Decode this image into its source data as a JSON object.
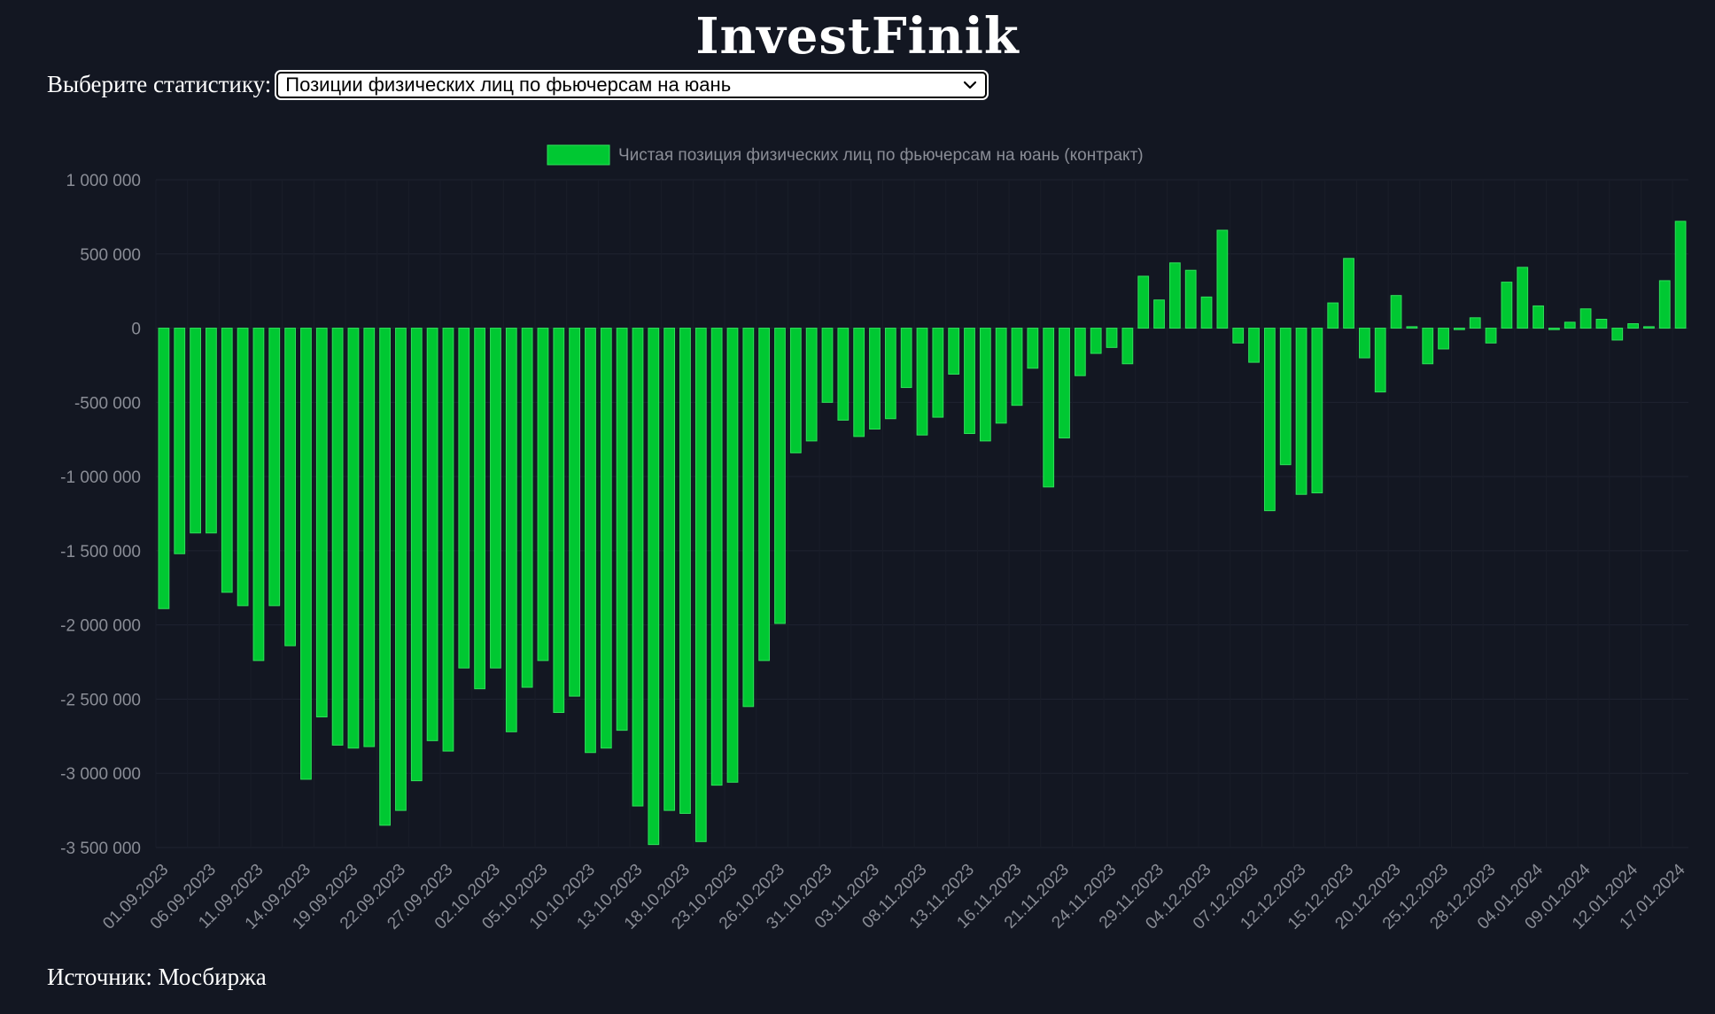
{
  "header": {
    "logo": "InvestFinik"
  },
  "controls": {
    "select_label": "Выберите статистику:",
    "select_value": "Позиции физических лиц по фьючерсам на юань",
    "chevron_icon": "chevron-down-icon"
  },
  "footer": {
    "source": "Источник: Мосбиржа"
  },
  "colors": {
    "background": "#131722",
    "bar": "#00c832",
    "bar_border": "#2fe05a",
    "tick_text": "#8a8d96"
  },
  "chart_data": {
    "type": "bar",
    "title": "",
    "xlabel": "",
    "ylabel": "",
    "legend_position": "top-center",
    "grid": true,
    "ylim": [
      -3500000,
      1000000
    ],
    "yticks": [
      1000000,
      500000,
      0,
      -500000,
      -1000000,
      -1500000,
      -2000000,
      -2500000,
      -3000000,
      -3500000
    ],
    "ytick_labels": [
      "1 000 000",
      "500 000",
      "0",
      "-500 000",
      "-1 000 000",
      "-1 500 000",
      "-2 000 000",
      "-2 500 000",
      "-3 000 000",
      "-3 500 000"
    ],
    "xtick_labels": [
      "01.09.2023",
      "06.09.2023",
      "11.09.2023",
      "14.09.2023",
      "19.09.2023",
      "22.09.2023",
      "27.09.2023",
      "02.10.2023",
      "05.10.2023",
      "10.10.2023",
      "13.10.2023",
      "18.10.2023",
      "23.10.2023",
      "26.10.2023",
      "31.10.2023",
      "03.11.2023",
      "08.11.2023",
      "13.11.2023",
      "16.11.2023",
      "21.11.2023",
      "24.11.2023",
      "29.11.2023",
      "04.12.2023",
      "07.12.2023",
      "12.12.2023",
      "15.12.2023",
      "20.12.2023",
      "25.12.2023",
      "28.12.2023",
      "04.01.2024",
      "09.01.2024",
      "12.01.2024",
      "17.01.2024"
    ],
    "series": [
      {
        "name": "Чистая позиция физических лиц по фьючерсам на юань (контракт)",
        "values": [
          -1890000,
          -1520000,
          -1380000,
          -1380000,
          -1780000,
          -1870000,
          -2240000,
          -1870000,
          -2140000,
          -3040000,
          -2620000,
          -2810000,
          -2830000,
          -2820000,
          -3350000,
          -3250000,
          -3050000,
          -2780000,
          -2850000,
          -2290000,
          -2430000,
          -2290000,
          -2720000,
          -2420000,
          -2240000,
          -2590000,
          -2480000,
          -2860000,
          -2830000,
          -2710000,
          -3220000,
          -3480000,
          -3250000,
          -3270000,
          -3460000,
          -3080000,
          -3060000,
          -2550000,
          -2240000,
          -1990000,
          -840000,
          -760000,
          -500000,
          -620000,
          -730000,
          -680000,
          -610000,
          -400000,
          -720000,
          -600000,
          -310000,
          -710000,
          -760000,
          -640000,
          -520000,
          -270000,
          -1070000,
          -740000,
          -320000,
          -170000,
          -130000,
          -240000,
          350000,
          190000,
          440000,
          390000,
          210000,
          660000,
          -100000,
          -230000,
          -1230000,
          -920000,
          -1120000,
          -1110000,
          170000,
          470000,
          -200000,
          -430000,
          220000,
          10000,
          -240000,
          -140000,
          -10000,
          70000,
          -100000,
          310000,
          410000,
          150000,
          -10000,
          40000,
          130000,
          60000,
          -80000,
          30000,
          10000,
          320000,
          720000
        ]
      }
    ]
  }
}
